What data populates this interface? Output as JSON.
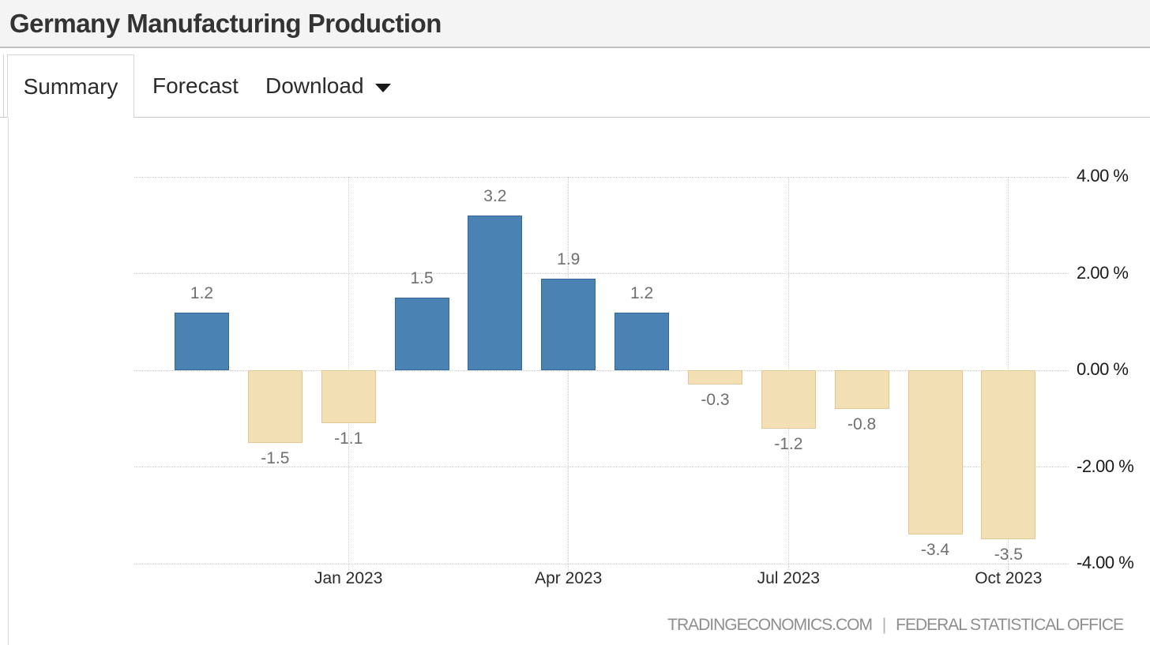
{
  "header": {
    "title": "Germany Manufacturing Production"
  },
  "tabs": [
    {
      "label": "Summary",
      "active": true
    },
    {
      "label": "Forecast",
      "active": false
    },
    {
      "label": "Download",
      "active": false,
      "has_dropdown": true
    }
  ],
  "chart_data": {
    "type": "bar",
    "title": "Germany Manufacturing Production",
    "values": [
      1.2,
      -1.5,
      -1.1,
      1.5,
      3.2,
      1.9,
      1.2,
      -0.3,
      -1.2,
      -0.8,
      -3.4,
      -3.5
    ],
    "data_labels": [
      "1.2",
      "-1.5",
      "-1.1",
      "1.5",
      "3.2",
      "1.9",
      "1.2",
      "-0.3",
      "-1.2",
      "-0.8",
      "-3.4",
      "-3.5"
    ],
    "x_tick_labels": [
      "Jan 2023",
      "Apr 2023",
      "Jul 2023",
      "Oct 2023"
    ],
    "x_tick_bar_indices": [
      2,
      5,
      8,
      11
    ],
    "y_tick_labels": [
      "4.00 %",
      "2.00 %",
      "0.00 %",
      "-2.00 %",
      "-4.00 %"
    ],
    "y_tick_values": [
      4,
      2,
      0,
      -2,
      -4
    ],
    "ylim": [
      -4,
      4
    ],
    "grid": "dotted",
    "legend": "none",
    "bar_colors": {
      "positive": "#4a83b3",
      "negative": "#f3dfb4"
    }
  },
  "footer": {
    "source_primary": "TRADINGECONOMICS.COM",
    "separator": "|",
    "source_secondary": "FEDERAL STATISTICAL OFFICE"
  }
}
